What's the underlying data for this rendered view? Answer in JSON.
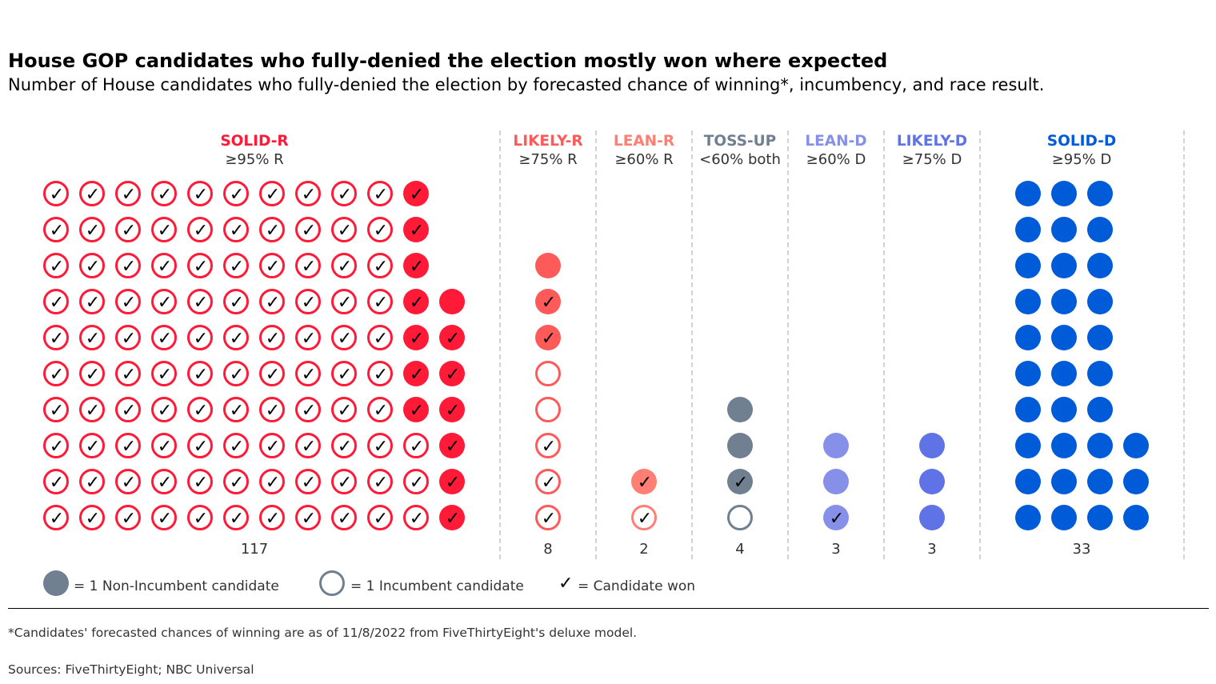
{
  "title": "House GOP candidates who fully-denied the election mostly won where expected",
  "subtitle": "Number of House candidates who fully-denied the election by forecasted chance of winning*, incumbency, and race result.",
  "chart_data": {
    "type": "waffle",
    "categories": [
      {
        "label": "SOLID-R",
        "threshold": "≥95% R",
        "color": "#ff1a38",
        "total": "117",
        "counts": {
          "incumbent_won": 103,
          "incumbent_lost": 0,
          "nonincumbent_won": 13,
          "nonincumbent_lost": 1
        }
      },
      {
        "label": "LIKELY-R",
        "threshold": "≥75% R",
        "color": "#ff5a5a",
        "total": "8",
        "counts": {
          "incumbent_won": 3,
          "incumbent_lost": 2,
          "nonincumbent_won": 2,
          "nonincumbent_lost": 1
        }
      },
      {
        "label": "LEAN-R",
        "threshold": "≥60% R",
        "color": "#ff7f74",
        "total": "2",
        "counts": {
          "incumbent_won": 1,
          "incumbent_lost": 0,
          "nonincumbent_won": 1,
          "nonincumbent_lost": 0
        }
      },
      {
        "label": "TOSS-UP",
        "threshold": "<60% both",
        "color": "#708090",
        "total": "4",
        "counts": {
          "incumbent_won": 0,
          "incumbent_lost": 1,
          "nonincumbent_won": 1,
          "nonincumbent_lost": 2
        }
      },
      {
        "label": "LEAN-D",
        "threshold": "≥60% D",
        "color": "#8790e8",
        "total": "3",
        "counts": {
          "incumbent_won": 0,
          "incumbent_lost": 0,
          "nonincumbent_won": 1,
          "nonincumbent_lost": 2
        }
      },
      {
        "label": "LIKELY-D",
        "threshold": "≥75% D",
        "color": "#5f72e6",
        "total": "3",
        "counts": {
          "incumbent_won": 0,
          "incumbent_lost": 0,
          "nonincumbent_won": 0,
          "nonincumbent_lost": 3
        }
      },
      {
        "label": "SOLID-D",
        "threshold": "≥95% D",
        "color": "#005bd8",
        "total": "33",
        "counts": {
          "incumbent_won": 0,
          "incumbent_lost": 0,
          "nonincumbent_won": 0,
          "nonincumbent_lost": 33
        }
      }
    ],
    "legend": [
      {
        "symbol": "non-incumbent-dot",
        "text": "= 1 Non-Incumbent candidate"
      },
      {
        "symbol": "incumbent-ring",
        "text": "= 1 Incumbent candidate"
      },
      {
        "symbol": "check",
        "text": "= Candidate won"
      }
    ],
    "check_glyph": "✓",
    "legend_color": "#708090",
    "grid_line_color": "#c8c8c8"
  },
  "footnote": "*Candidates' forecasted chances of winning are as of 11/8/2022 from FiveThirtyEight's deluxe model.",
  "sources": "Sources: FiveThirtyEight; NBC Universal"
}
